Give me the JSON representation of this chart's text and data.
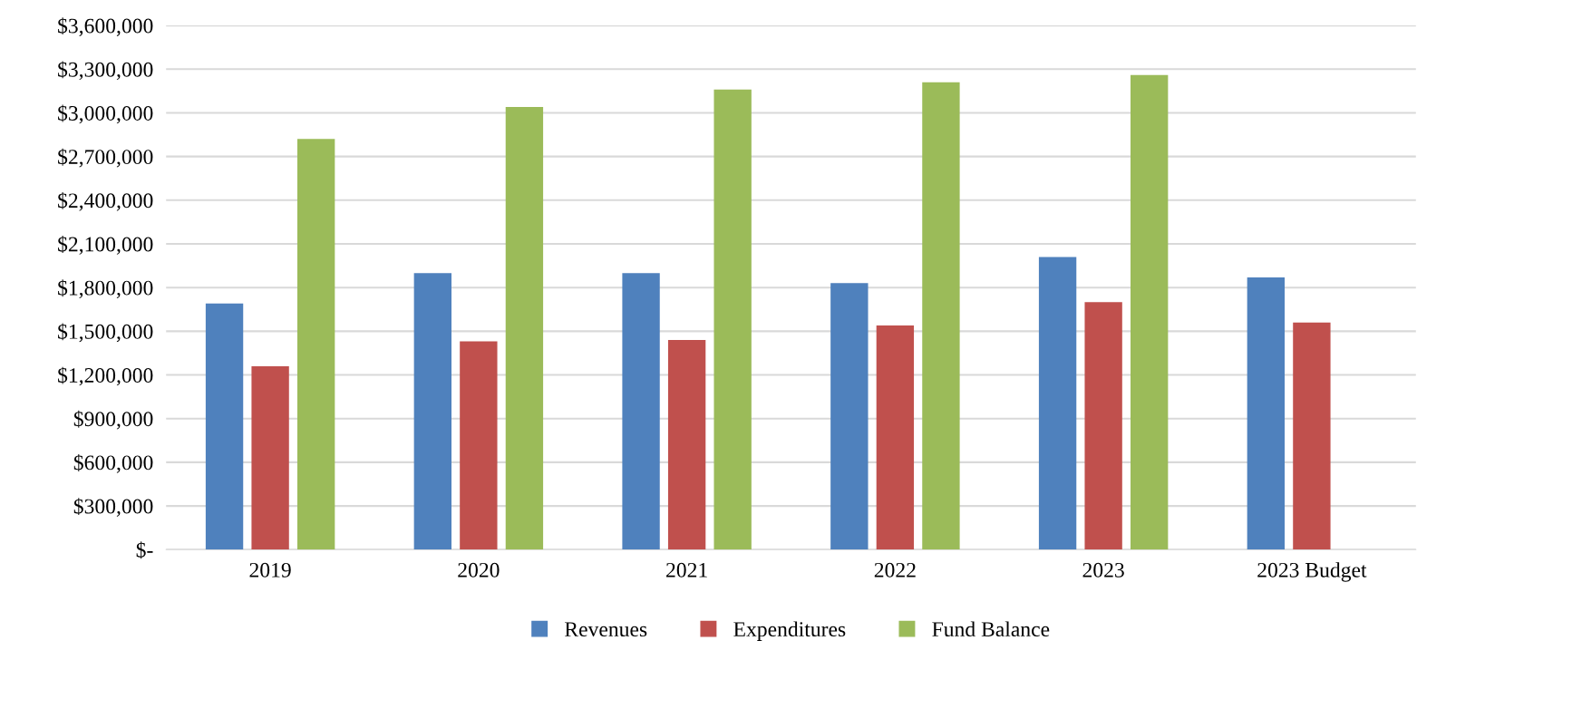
{
  "chart_data": {
    "type": "bar",
    "categories": [
      "2019",
      "2020",
      "2021",
      "2022",
      "2023",
      "2023 Budget"
    ],
    "series": [
      {
        "name": "Revenues",
        "color": "#4f81bd",
        "values": [
          1690000,
          1900000,
          1900000,
          1830000,
          2010000,
          1870000
        ]
      },
      {
        "name": "Expenditures",
        "color": "#c0504d",
        "values": [
          1260000,
          1430000,
          1440000,
          1540000,
          1700000,
          1560000
        ]
      },
      {
        "name": "Fund Balance",
        "color": "#9bbb59",
        "values": [
          2820000,
          3040000,
          3160000,
          3210000,
          3260000,
          null
        ]
      }
    ],
    "ylim": [
      0,
      3600000
    ],
    "yticks": [
      {
        "value": 0,
        "label": "$-"
      },
      {
        "value": 300000,
        "label": "$300,000"
      },
      {
        "value": 600000,
        "label": "$600,000"
      },
      {
        "value": 900000,
        "label": "$900,000"
      },
      {
        "value": 1200000,
        "label": "$1,200,000"
      },
      {
        "value": 1500000,
        "label": "$1,500,000"
      },
      {
        "value": 1800000,
        "label": "$1,800,000"
      },
      {
        "value": 2100000,
        "label": "$2,100,000"
      },
      {
        "value": 2400000,
        "label": "$2,400,000"
      },
      {
        "value": 2700000,
        "label": "$2,700,000"
      },
      {
        "value": 3000000,
        "label": "$3,000,000"
      },
      {
        "value": 3300000,
        "label": "$3,300,000"
      },
      {
        "value": 3600000,
        "label": "$3,600,000"
      }
    ],
    "grid": "y",
    "legend": "bottom"
  }
}
